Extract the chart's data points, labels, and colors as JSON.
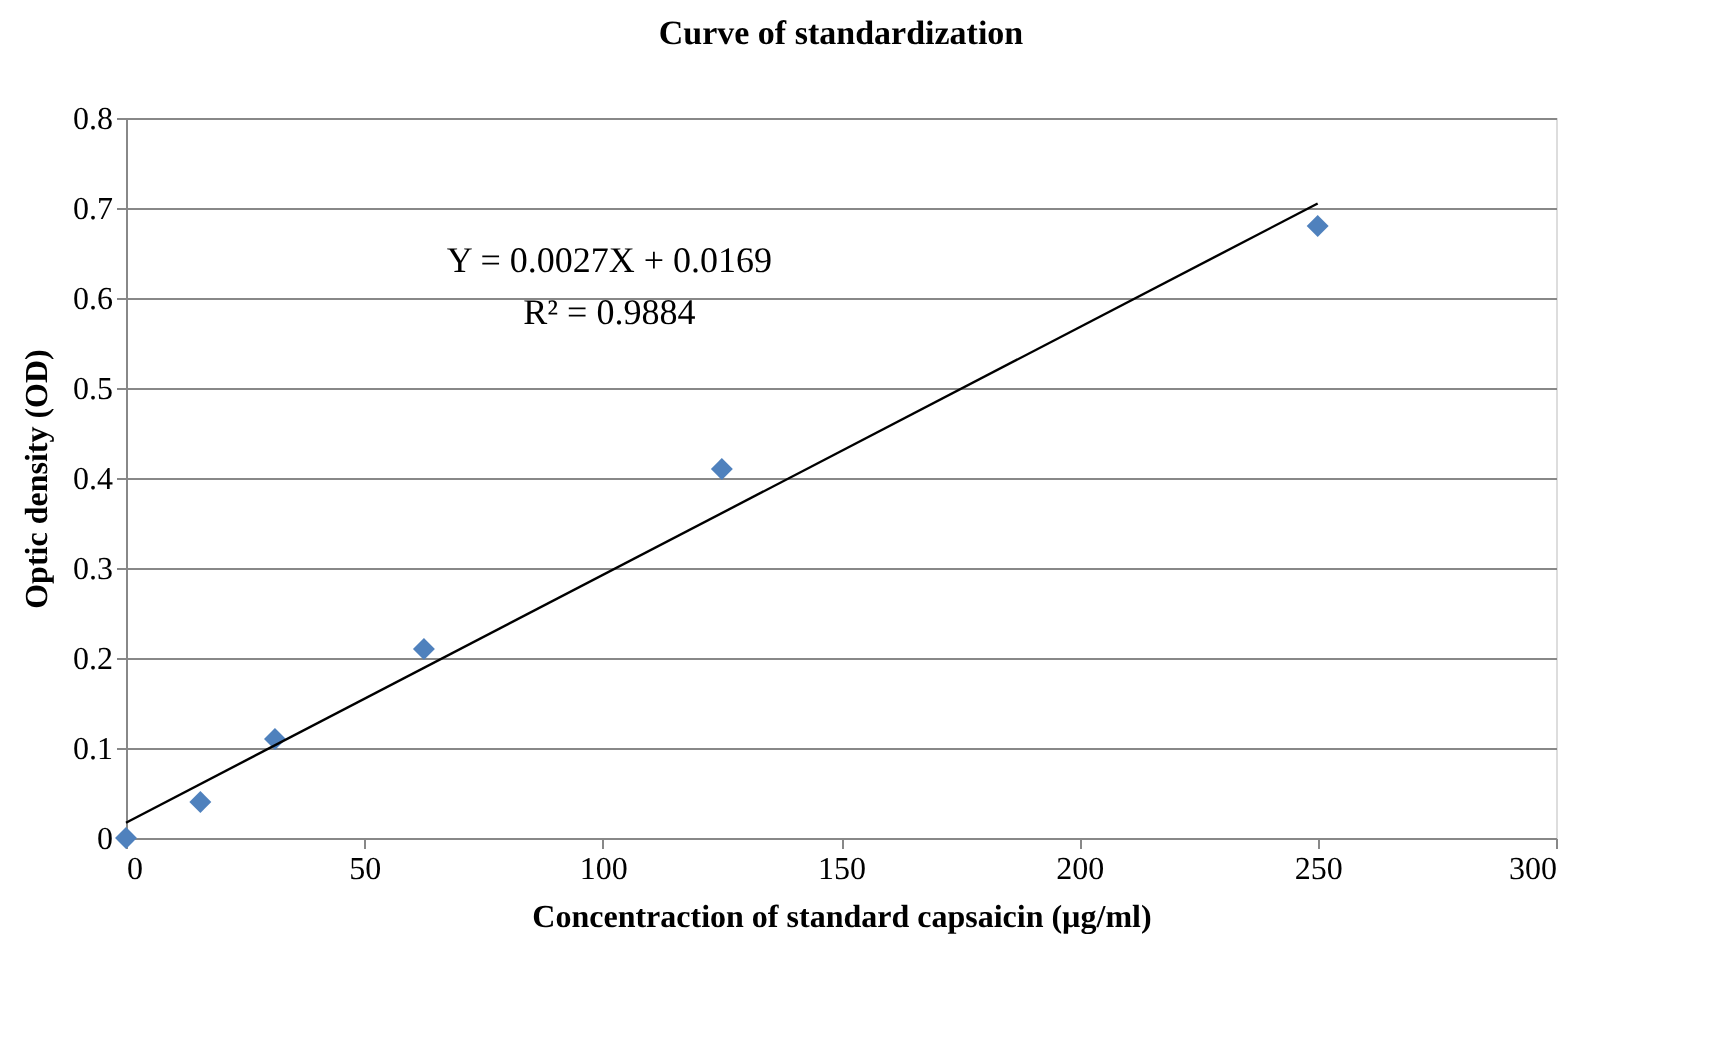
{
  "chart_data": {
    "type": "scatter",
    "title": "Curve of standardization",
    "xlabel": "Concentraction of standard capsaicin  (µg/ml)",
    "ylabel": "Optic density (OD)",
    "series": [
      {
        "color": "#4f81bd",
        "marker": "diamond",
        "x": [
          0,
          15.6,
          31.25,
          62.5,
          125,
          250
        ],
        "values": [
          0.0,
          0.04,
          0.11,
          0.21,
          0.41,
          0.68
        ]
      },
      {
        "type": "line",
        "color": "#000000",
        "marker": "none",
        "x": [
          0,
          250
        ],
        "values": [
          0.017,
          0.705
        ]
      }
    ],
    "xlim": [
      0,
      300
    ],
    "xticks": [
      0,
      50,
      100,
      150,
      200,
      250,
      300
    ],
    "ylim": [
      0,
      0.8
    ],
    "yticks": [
      {
        "value": 0,
        "label": "0"
      },
      0.1,
      0.2,
      0.3,
      0.4,
      0.5,
      0.6,
      0.7,
      0.8
    ],
    "grid": "y",
    "annotations": [
      "Y = 0.0027X + 0.0169",
      "R² = 0.9884"
    ]
  }
}
